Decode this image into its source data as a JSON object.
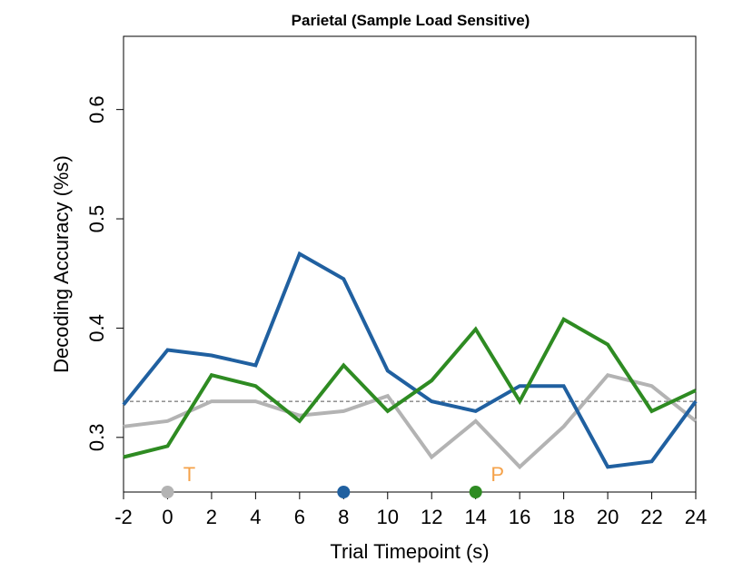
{
  "chart_data": {
    "type": "line",
    "title": "Parietal (Sample Load Sensitive)",
    "xlabel": "Trial Timepoint (s)",
    "ylabel": "Decoding Accuracy (%s)",
    "x": [
      -2,
      0,
      2,
      4,
      6,
      8,
      10,
      12,
      14,
      16,
      18,
      20,
      22,
      24
    ],
    "xlim": [
      -2,
      24
    ],
    "ylim": [
      0.25,
      0.667
    ],
    "x_ticks": [
      -2,
      0,
      2,
      4,
      6,
      8,
      10,
      12,
      14,
      16,
      18,
      20,
      22,
      24
    ],
    "y_ticks": [
      0.3,
      0.4,
      0.5,
      0.6
    ],
    "x_tick_labels": [
      "-2",
      "0",
      "2",
      "4",
      "6",
      "8",
      "10",
      "12",
      "14",
      "16",
      "18",
      "20",
      "22",
      "24"
    ],
    "y_tick_labels": [
      "0.3",
      "0.4",
      "0.5",
      "0.6"
    ],
    "chance_level": 0.333,
    "grid": false,
    "legend": "none",
    "series": [
      {
        "color": "#b3b3b3",
        "values": [
          0.31,
          0.315,
          0.333,
          0.333,
          0.32,
          0.324,
          0.338,
          0.282,
          0.315,
          0.273,
          0.31,
          0.357,
          0.347,
          0.315
        ]
      },
      {
        "color": "#2060a0",
        "values": [
          0.33,
          0.38,
          0.375,
          0.366,
          0.468,
          0.445,
          0.361,
          0.333,
          0.324,
          0.347,
          0.347,
          0.273,
          0.278,
          0.333
        ]
      },
      {
        "color": "#2e8b22",
        "values": [
          0.282,
          0.292,
          0.357,
          0.347,
          0.315,
          0.366,
          0.324,
          0.352,
          0.399,
          0.333,
          0.408,
          0.385,
          0.324,
          0.343
        ]
      }
    ],
    "event_markers": [
      {
        "x": 0,
        "color": "#b3b3b3",
        "label": "T"
      },
      {
        "x": 8,
        "color": "#2060a0",
        "label": ""
      },
      {
        "x": 14,
        "color": "#2e8b22",
        "label": "P"
      }
    ],
    "label_color": "#f5a24a"
  }
}
